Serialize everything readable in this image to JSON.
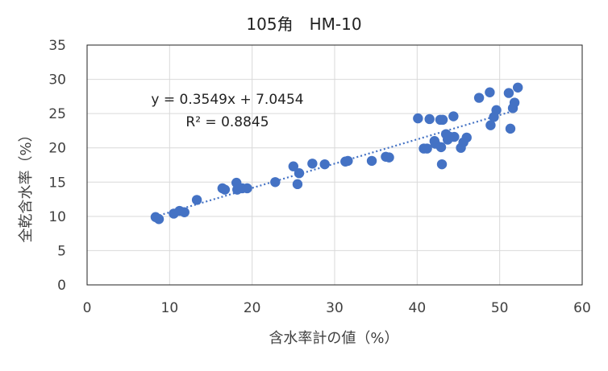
{
  "chart_data": {
    "type": "scatter",
    "title": "105角　HM-10",
    "xlabel": "含水率計の値（%）",
    "ylabel": "全乾含水率（%）",
    "xlim": [
      0,
      60
    ],
    "ylim": [
      0,
      35
    ],
    "x_ticks": [
      0,
      10,
      20,
      30,
      40,
      50,
      60
    ],
    "y_ticks": [
      0,
      5,
      10,
      15,
      20,
      25,
      30,
      35
    ],
    "grid": true,
    "legend": "none",
    "marker_color": "#4472C4",
    "trendline": {
      "type": "linear",
      "slope": 0.3549,
      "intercept": 7.0454,
      "x_range": [
        8.3,
        52.3
      ],
      "style": "dotted",
      "color": "#4472C4",
      "equation_label": "y = 0.3549x + 7.0454",
      "r2_label": "R² = 0.8845"
    },
    "series": [
      {
        "points": [
          [
            8.3,
            9.9
          ],
          [
            8.7,
            9.6
          ],
          [
            10.5,
            10.4
          ],
          [
            11.2,
            10.8
          ],
          [
            11.8,
            10.6
          ],
          [
            13.3,
            12.4
          ],
          [
            16.4,
            14.1
          ],
          [
            16.7,
            13.9
          ],
          [
            18.1,
            14.9
          ],
          [
            18.2,
            13.9
          ],
          [
            18.8,
            14.1
          ],
          [
            19.4,
            14.1
          ],
          [
            22.8,
            15.0
          ],
          [
            25.0,
            17.3
          ],
          [
            25.5,
            14.7
          ],
          [
            25.7,
            16.3
          ],
          [
            27.3,
            17.7
          ],
          [
            28.8,
            17.6
          ],
          [
            31.3,
            18.0
          ],
          [
            31.6,
            18.1
          ],
          [
            34.5,
            18.1
          ],
          [
            36.2,
            18.7
          ],
          [
            36.6,
            18.6
          ],
          [
            40.1,
            24.3
          ],
          [
            40.8,
            19.9
          ],
          [
            41.2,
            19.9
          ],
          [
            41.5,
            24.2
          ],
          [
            42.1,
            21.0
          ],
          [
            42.2,
            20.6
          ],
          [
            42.8,
            24.1
          ],
          [
            42.9,
            20.1
          ],
          [
            43.0,
            17.6
          ],
          [
            43.1,
            24.1
          ],
          [
            43.5,
            22.0
          ],
          [
            43.7,
            21.2
          ],
          [
            44.0,
            21.6
          ],
          [
            44.5,
            21.6
          ],
          [
            44.4,
            24.6
          ],
          [
            45.3,
            20.0
          ],
          [
            45.6,
            20.8
          ],
          [
            46.0,
            21.5
          ],
          [
            47.5,
            27.3
          ],
          [
            48.8,
            28.1
          ],
          [
            48.9,
            23.3
          ],
          [
            49.3,
            24.5
          ],
          [
            49.6,
            25.5
          ],
          [
            51.1,
            28.0
          ],
          [
            51.3,
            22.8
          ],
          [
            51.6,
            25.8
          ],
          [
            51.8,
            26.6
          ],
          [
            52.2,
            28.8
          ]
        ]
      }
    ]
  }
}
